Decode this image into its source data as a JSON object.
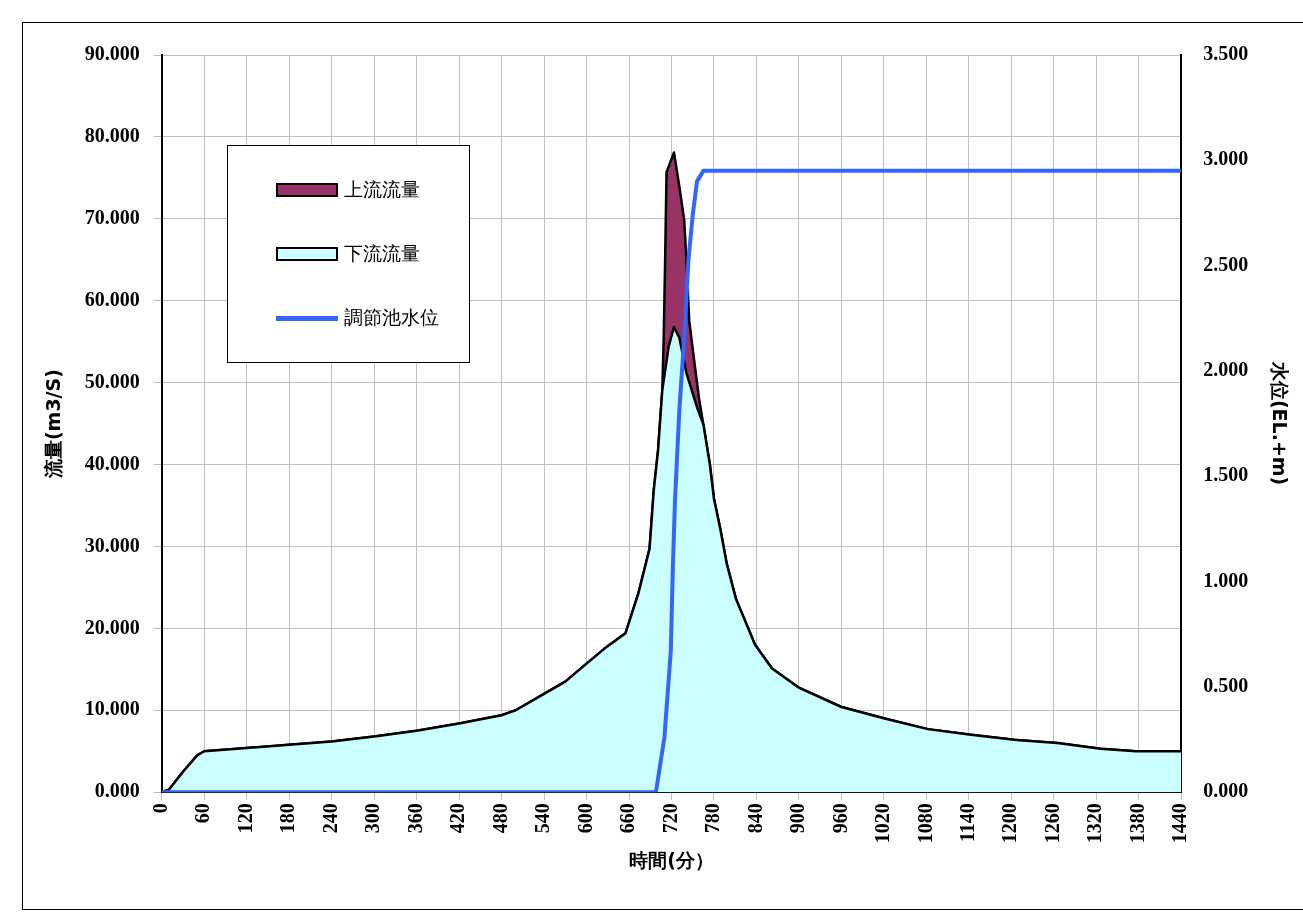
{
  "chart_data": {
    "type": "area",
    "xlabel": "時間(分）",
    "ylabel": "流量(m3/S)",
    "y2label": "水位(EL.+m)",
    "xlim": [
      0,
      1440
    ],
    "xticks": [
      0,
      60,
      120,
      180,
      240,
      300,
      360,
      420,
      480,
      540,
      600,
      660,
      720,
      780,
      840,
      900,
      960,
      1020,
      1080,
      1140,
      1200,
      1260,
      1320,
      1380,
      1440
    ],
    "ylim": [
      0,
      90
    ],
    "yticks": [
      {
        "value": 0,
        "label": "0.000"
      },
      {
        "value": 10,
        "label": "10.000"
      },
      {
        "value": 20,
        "label": "20.000"
      },
      {
        "value": 30,
        "label": "30.000"
      },
      {
        "value": 40,
        "label": "40.000"
      },
      {
        "value": 50,
        "label": "50.000"
      },
      {
        "value": 60,
        "label": "60.000"
      },
      {
        "value": 70,
        "label": "70.000"
      },
      {
        "value": 80,
        "label": "80.000"
      },
      {
        "value": 90,
        "label": "90.000"
      }
    ],
    "y2lim": [
      0,
      3.5
    ],
    "y2ticks": [
      {
        "value": 0,
        "label": "0.000"
      },
      {
        "value": 0.5,
        "label": "0.500"
      },
      {
        "value": 1,
        "label": "1.000"
      },
      {
        "value": 1.5,
        "label": "1.500"
      },
      {
        "value": 2,
        "label": "2.000"
      },
      {
        "value": 2.5,
        "label": "2.500"
      },
      {
        "value": 3,
        "label": "3.000"
      },
      {
        "value": 3.5,
        "label": "3.500"
      }
    ],
    "grid": true,
    "legend": "top left",
    "series": [
      {
        "name": "上流流量",
        "color": "#993366",
        "x": [
          0,
          10,
          30,
          50,
          60,
          120,
          180,
          240,
          300,
          360,
          420,
          480,
          500,
          540,
          570,
          600,
          625,
          655,
          673,
          689,
          695,
          701,
          707,
          709,
          711,
          713,
          723.5,
          731,
          738,
          741,
          745,
          751,
          759,
          765,
          774,
          780,
          789,
          798,
          811,
          838,
          862,
          899,
          960,
          1021,
          1082,
          1143,
          1204,
          1265,
          1326,
          1376,
          1440
        ],
        "values": [
          0,
          0.3,
          2.5,
          4.5,
          5.0,
          5.4,
          5.8,
          6.2,
          6.8,
          7.5,
          8.4,
          9.4,
          10.0,
          12.0,
          13.5,
          15.7,
          17.5,
          19.4,
          24.2,
          29.7,
          36.9,
          41.7,
          49.1,
          55.5,
          65,
          75.7,
          78.1,
          74,
          69.8,
          65,
          57.6,
          53.4,
          48,
          44.9,
          40.1,
          35.8,
          32.1,
          27.9,
          23.6,
          18,
          15.1,
          12.8,
          10.4,
          9.0,
          7.7,
          7.0,
          6.4,
          6.0,
          5.3,
          5.0,
          5.0
        ]
      },
      {
        "name": "下流流量",
        "color": "#ccffff",
        "x": [
          0,
          10,
          30,
          50,
          60,
          120,
          180,
          240,
          300,
          360,
          420,
          480,
          500,
          540,
          570,
          600,
          625,
          655,
          673,
          689,
          695,
          701,
          707,
          716,
          723.5,
          731,
          741,
          756,
          765,
          774,
          780,
          789,
          798,
          811,
          838,
          862,
          899,
          960,
          1021,
          1082,
          1143,
          1204,
          1265,
          1326,
          1376,
          1440
        ],
        "values": [
          0,
          0.3,
          2.5,
          4.5,
          5.0,
          5.4,
          5.8,
          6.2,
          6.8,
          7.5,
          8.4,
          9.4,
          10.0,
          12.0,
          13.5,
          15.7,
          17.5,
          19.4,
          24.2,
          29.7,
          36.9,
          41.7,
          49.1,
          54.4,
          56.8,
          55.5,
          51.2,
          47,
          44.9,
          40.1,
          35.8,
          32.1,
          27.9,
          23.6,
          18,
          15.1,
          12.8,
          10.4,
          9.0,
          7.7,
          7.0,
          6.4,
          6.0,
          5.3,
          5.0,
          5.0
        ]
      },
      {
        "name": "調節池水位",
        "type": "line",
        "axis": "y2",
        "color": "#3366ff",
        "x": [
          0,
          698,
          710,
          719,
          722,
          725,
          731,
          738,
          744,
          750,
          756,
          765,
          1440
        ],
        "values": [
          0,
          0,
          0.26,
          0.67,
          1.08,
          1.39,
          1.81,
          2.16,
          2.53,
          2.74,
          2.9,
          2.95,
          2.95
        ]
      }
    ]
  }
}
